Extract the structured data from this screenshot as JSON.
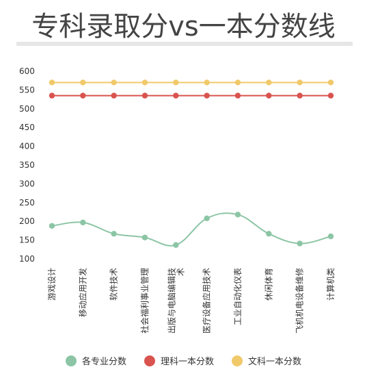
{
  "title": "专科录取分vs一本分数线",
  "colors": {
    "series0": "#8cc5a5",
    "series1": "#d9534f",
    "series2": "#f0c96a"
  },
  "chart_data": {
    "type": "line",
    "categories": [
      "游戏设计",
      "移动应用开发",
      "软件技术",
      "社会福利事业管理",
      "出版与电脑编辑技术",
      "医疗设备应用技术",
      "工业自动化仪表",
      "休闲体育",
      "飞机机电设备维修",
      "计算机类"
    ],
    "series": [
      {
        "name": "各专业分数",
        "values": [
          188,
          197,
          167,
          157,
          137,
          208,
          218,
          167,
          141,
          160
        ],
        "smooth": true
      },
      {
        "name": "理科一本分数",
        "values": [
          535,
          535,
          535,
          535,
          535,
          535,
          535,
          535,
          535,
          535
        ]
      },
      {
        "name": "文科一本分数",
        "values": [
          570,
          570,
          570,
          570,
          570,
          570,
          570,
          570,
          570,
          570
        ]
      }
    ],
    "yticks": [
      100,
      150,
      200,
      250,
      300,
      350,
      400,
      450,
      500,
      550,
      600
    ],
    "ylim": [
      100,
      600
    ],
    "legend": "bottom",
    "grid": false
  }
}
